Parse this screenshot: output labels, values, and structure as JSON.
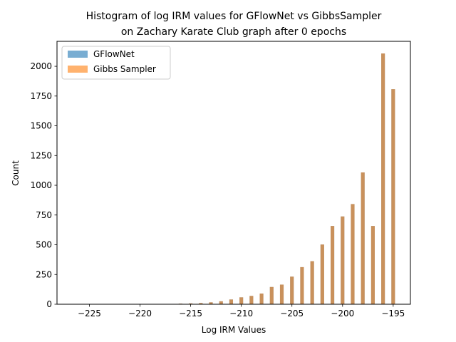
{
  "chart_data": {
    "type": "bar",
    "title_line1": "Histogram of log IRM values for GFlowNet vs GibbsSampler",
    "title_line2": "on Zachary Karate Club graph after 0 epochs",
    "xlabel": "Log IRM Values",
    "ylabel": "Count",
    "xlim": [
      -228.2,
      -193.3
    ],
    "ylim": [
      0,
      2210
    ],
    "xticks": [
      -225,
      -220,
      -215,
      -210,
      -205,
      -200,
      -195
    ],
    "xtick_labels": [
      "−225",
      "−220",
      "−215",
      "−210",
      "−205",
      "−200",
      "−195"
    ],
    "yticks": [
      0,
      250,
      500,
      750,
      1000,
      1250,
      1500,
      1750,
      2000
    ],
    "ytick_labels": [
      "0",
      "250",
      "500",
      "750",
      "1000",
      "1250",
      "1500",
      "1750",
      "2000"
    ],
    "bar_width": 0.36,
    "legend_position": "upper-left",
    "series": [
      {
        "name": "GFlowNet",
        "color": "#1f77b4",
        "opacity": 0.6,
        "x": [
          -217,
          -216,
          -215,
          -214,
          -213,
          -212,
          -211,
          -210,
          -209,
          -208,
          -207,
          -206,
          -205,
          -204,
          -203,
          -202,
          -201,
          -200,
          -199,
          -198,
          -197,
          -196,
          -195
        ],
        "values": [
          3,
          5,
          7,
          10,
          16,
          25,
          40,
          58,
          70,
          90,
          145,
          165,
          232,
          312,
          362,
          502,
          658,
          738,
          842,
          1108,
          658,
          2108,
          1808
        ]
      },
      {
        "name": "Gibbs Sampler",
        "color": "#ff7f0e",
        "opacity": 0.6,
        "x": [
          -217,
          -216,
          -215,
          -214,
          -213,
          -212,
          -211,
          -210,
          -209,
          -208,
          -207,
          -206,
          -205,
          -204,
          -203,
          -202,
          -201,
          -200,
          -199,
          -198,
          -197,
          -196,
          -195
        ],
        "values": [
          3,
          5,
          7,
          10,
          16,
          25,
          40,
          58,
          70,
          90,
          145,
          165,
          232,
          312,
          362,
          502,
          658,
          738,
          842,
          1108,
          658,
          2108,
          1808
        ]
      }
    ]
  }
}
